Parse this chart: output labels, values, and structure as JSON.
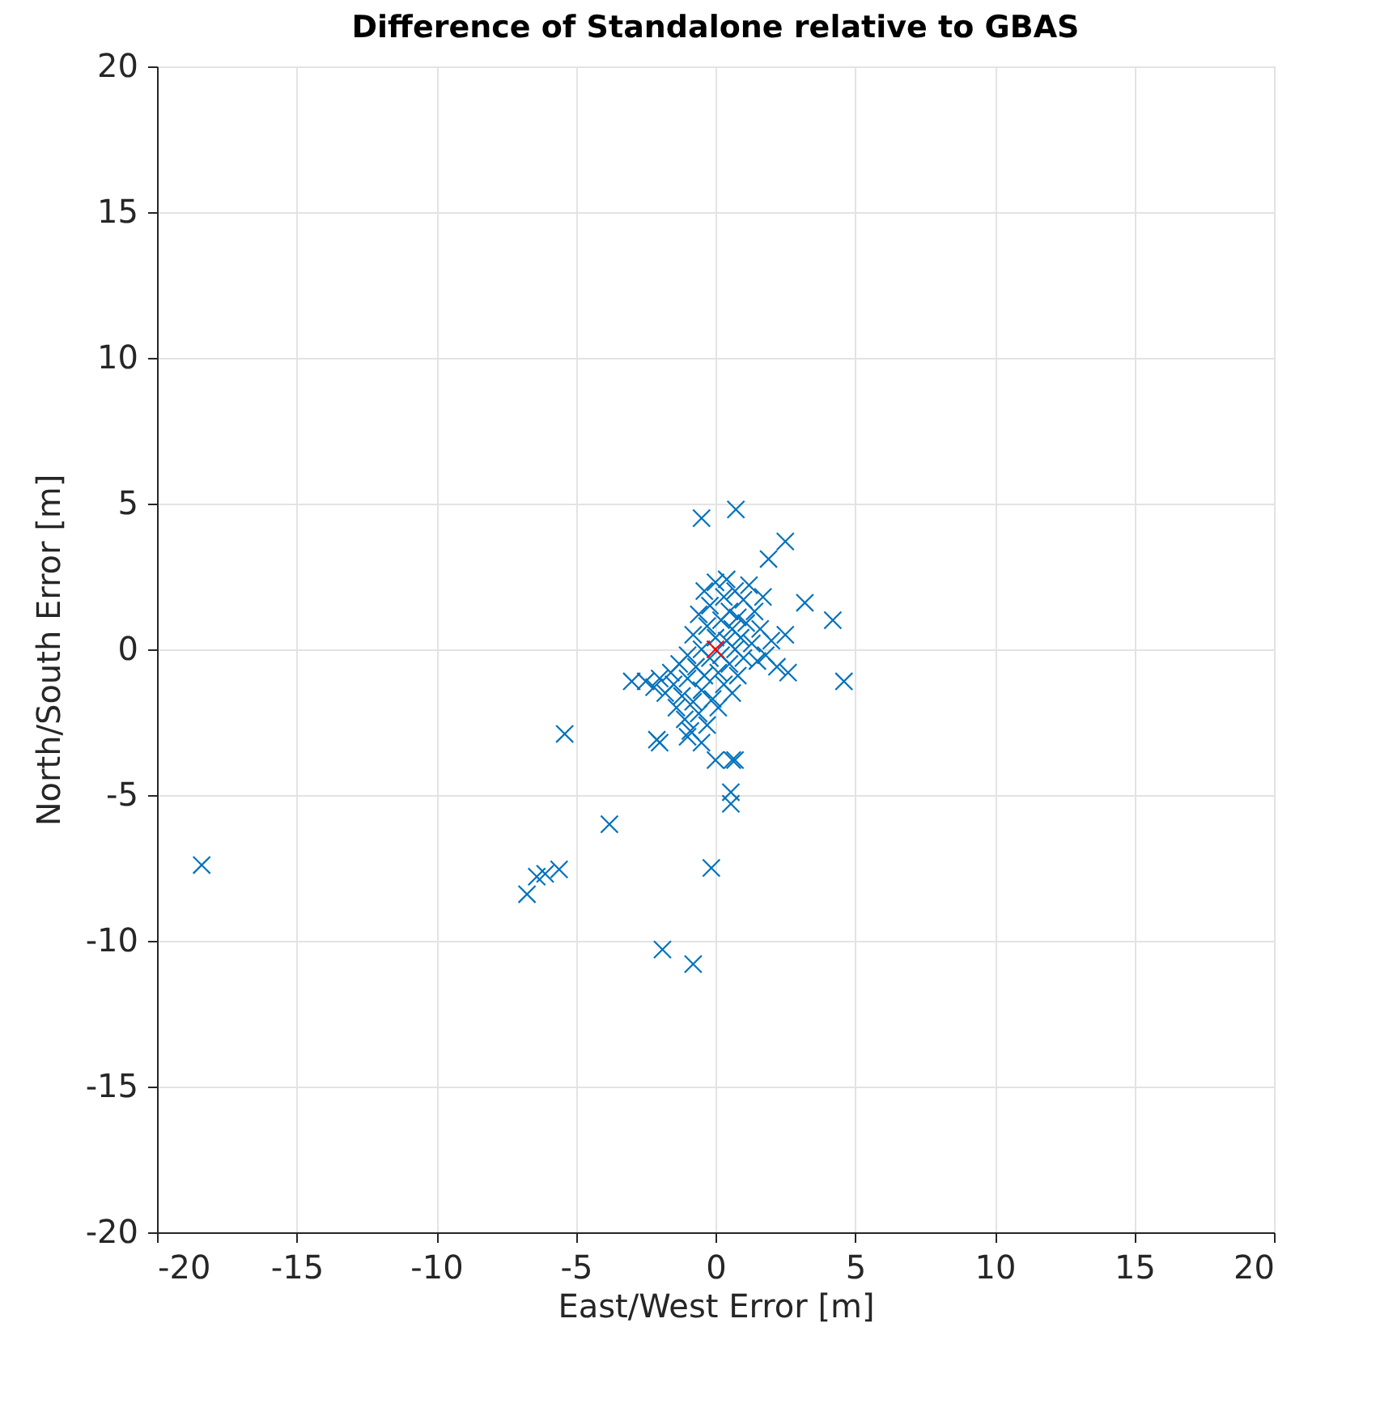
{
  "chart_data": {
    "type": "scatter",
    "title": "Difference of Standalone relative to GBAS",
    "xlabel": "East/West Error [m]",
    "ylabel": "North/South Error [m]",
    "xlim": [
      -20,
      20
    ],
    "ylim": [
      -20,
      20
    ],
    "xticks": [
      -20,
      -15,
      -10,
      -5,
      0,
      5,
      10,
      15,
      20
    ],
    "yticks": [
      -20,
      -15,
      -10,
      -5,
      0,
      5,
      10,
      15,
      20
    ],
    "grid": true,
    "marker": "cross",
    "series": [
      {
        "color": "#0072bd",
        "x": [
          -2.5,
          -2.2,
          -2.0,
          -1.8,
          -1.6,
          -1.5,
          -1.4,
          -1.3,
          -1.2,
          -1.1,
          -1.0,
          -1.0,
          -0.9,
          -0.8,
          -0.8,
          -0.7,
          -0.6,
          -0.6,
          -0.5,
          -0.5,
          -0.4,
          -0.4,
          -0.3,
          -0.3,
          -0.2,
          -0.2,
          -0.1,
          0.0,
          0.0,
          0.1,
          0.1,
          0.2,
          0.2,
          0.3,
          0.3,
          0.4,
          0.4,
          0.5,
          0.5,
          0.6,
          0.6,
          0.7,
          0.7,
          0.8,
          0.8,
          0.9,
          1.0,
          1.0,
          1.1,
          1.2,
          1.3,
          1.4,
          1.5,
          1.6,
          1.8,
          2.0,
          2.2,
          2.5,
          2.6,
          1.7,
          -1.0,
          -0.5,
          0.6,
          -0.5,
          0.73,
          2.5,
          1.9,
          3.2,
          4.2,
          4.6,
          -3.0,
          -2.0,
          0.0,
          0.7,
          0.55,
          0.55,
          -3.8,
          -18.4,
          -5.4,
          -6.75,
          -6.4,
          -5.6,
          -6.1,
          -0.15,
          -1.9,
          -0.8,
          -2.1
        ],
        "values": [
          -1.1,
          -1.3,
          -1.0,
          -1.5,
          -0.8,
          -1.2,
          -2.0,
          -0.5,
          -1.6,
          -2.4,
          -0.2,
          -1.0,
          -2.8,
          0.5,
          -1.8,
          -0.6,
          1.2,
          -2.2,
          0.0,
          -1.4,
          2.0,
          -0.9,
          0.8,
          -2.6,
          -0.3,
          1.5,
          -1.7,
          0.4,
          2.3,
          -0.8,
          -2.0,
          1.0,
          -0.2,
          1.8,
          -1.2,
          0.3,
          2.4,
          -0.5,
          1.3,
          0.7,
          -1.5,
          2.0,
          0.0,
          1.1,
          -0.9,
          0.4,
          1.7,
          -0.3,
          0.9,
          2.2,
          0.2,
          1.3,
          -0.4,
          0.7,
          -0.2,
          0.3,
          -0.6,
          0.5,
          -0.8,
          1.8,
          -3.0,
          -3.2,
          -3.8,
          4.5,
          4.8,
          3.7,
          3.1,
          1.6,
          1.0,
          -1.1,
          -1.1,
          -3.2,
          -3.8,
          -3.8,
          -4.9,
          -5.3,
          -6.0,
          -7.4,
          -2.9,
          -8.4,
          -7.8,
          -7.55,
          -7.7,
          -7.5,
          -10.3,
          -10.8,
          -3.1
        ]
      },
      {
        "color": "#ff0000",
        "x": [
          0
        ],
        "values": [
          0
        ]
      }
    ]
  }
}
